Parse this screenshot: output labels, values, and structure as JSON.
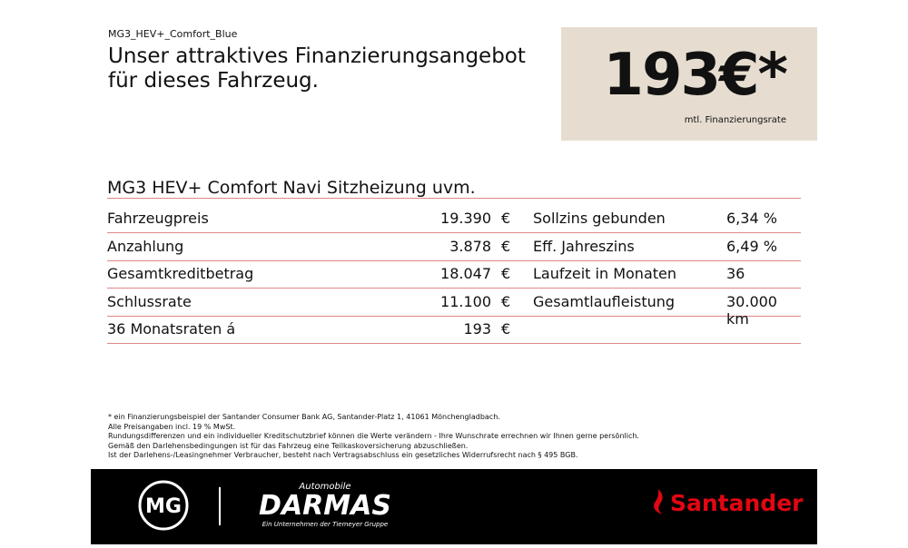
{
  "header": {
    "model_code": "MG3_HEV+_Comfort_Blue",
    "headline_line1": "Unser attraktives Finanzierungsangebot",
    "headline_line2": "für dieses Fahrzeug."
  },
  "price_box": {
    "price": "193€*",
    "caption": "mtl. Finanzierungsrate"
  },
  "table": {
    "title": "MG3 HEV+ Comfort Navi Sitzheizung uvm.",
    "rows": [
      [
        "Fahrzeugpreis",
        "19.390",
        "€",
        "Sollzins gebunden",
        "6,34 %"
      ],
      [
        "Anzahlung",
        "3.878",
        "€",
        "Eff. Jahreszins",
        "6,49 %"
      ],
      [
        "Gesamtkreditbetrag",
        "18.047",
        "€",
        "Laufzeit in Monaten",
        "36"
      ],
      [
        "Schlussrate",
        "11.100",
        "€",
        "Gesamtlaufleistung",
        "30.000 km"
      ],
      [
        "36 Monatsraten á",
        "193",
        "€",
        "",
        ""
      ]
    ]
  },
  "footnotes": [
    "* ein Finanzierungsbeispiel der Santander Consumer Bank AG, Santander-Platz 1, 41061 Mönchengladbach.",
    "Alle Preisangaben incl. 19 % MwSt.",
    "Rundungsdifferenzen und ein individueller Kreditschutzbrief können die Werte verändern - Ihre Wunschrate errechnen wir Ihnen gerne persönlich.",
    "Gemäß den Darlehensbedingungen ist für das Fahrzeug eine Teilkaskoversicherung abzuschließen.",
    "Ist der Darlehens-/Leasingnehmer Verbraucher, besteht nach Vertragsabschluss ein gesetzliches Widerrufsrecht nach § 495 BGB."
  ],
  "footer": {
    "mg_logo": "MG",
    "dealer_small": "Automobile",
    "dealer_name": "DARMAS",
    "dealer_sub": "Ein Unternehmen der Tiemeyer Gruppe",
    "bank": "Santander"
  }
}
